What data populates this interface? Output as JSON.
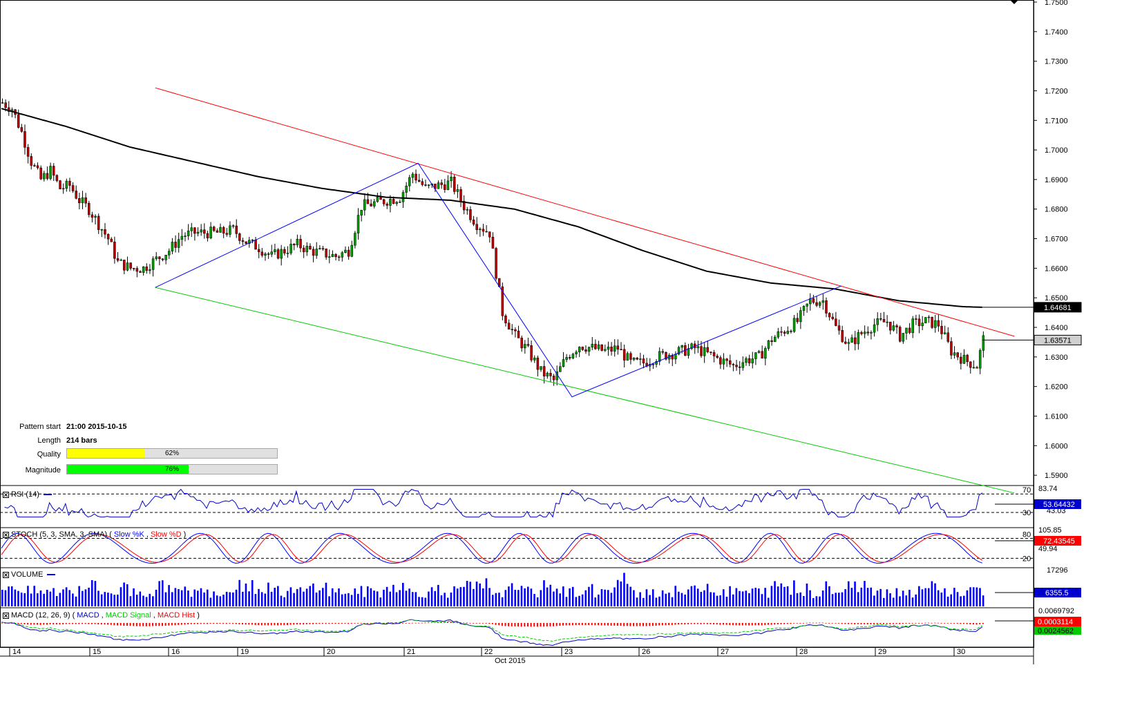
{
  "chart_data": {
    "type": "candlestick",
    "price_axis": {
      "min": 1.585,
      "max": 1.75,
      "ticks": [
        "1.7500",
        "1.7400",
        "1.7300",
        "1.7200",
        "1.7100",
        "1.7000",
        "1.6900",
        "1.6800",
        "1.6700",
        "1.6600",
        "1.6500",
        "1.6400",
        "1.6300",
        "1.6200",
        "1.6100",
        "1.6000",
        "1.5900"
      ],
      "last_price": "1.63571",
      "ma_value": "1.64681"
    },
    "date_axis": {
      "labels": [
        "14",
        "15",
        "16",
        "19",
        "20",
        "21",
        "22",
        "23",
        "26",
        "27",
        "28",
        "29",
        "30"
      ],
      "month_label": "Oct 2015"
    },
    "close_path": [
      [
        0,
        1.716
      ],
      [
        3,
        1.714
      ],
      [
        6,
        1.706
      ],
      [
        9,
        1.696
      ],
      [
        12,
        1.69
      ],
      [
        15,
        1.693
      ],
      [
        18,
        1.687
      ],
      [
        21,
        1.688
      ],
      [
        24,
        1.683
      ],
      [
        27,
        1.68
      ],
      [
        30,
        1.675
      ],
      [
        33,
        1.67
      ],
      [
        36,
        1.662
      ],
      [
        40,
        1.66
      ],
      [
        44,
        1.66
      ],
      [
        48,
        1.663
      ],
      [
        52,
        1.666
      ],
      [
        56,
        1.671
      ],
      [
        60,
        1.672
      ],
      [
        64,
        1.672
      ],
      [
        68,
        1.672
      ],
      [
        72,
        1.673
      ],
      [
        76,
        1.669
      ],
      [
        80,
        1.667
      ],
      [
        84,
        1.664
      ],
      [
        88,
        1.666
      ],
      [
        92,
        1.668
      ],
      [
        96,
        1.666
      ],
      [
        100,
        1.665
      ],
      [
        104,
        1.664
      ],
      [
        108,
        1.666
      ],
      [
        112,
        1.681
      ],
      [
        116,
        1.682
      ],
      [
        120,
        1.683
      ],
      [
        124,
        1.684
      ],
      [
        128,
        1.692
      ],
      [
        132,
        1.687
      ],
      [
        136,
        1.688
      ],
      [
        140,
        1.689
      ],
      [
        144,
        1.681
      ],
      [
        148,
        1.675
      ],
      [
        152,
        1.672
      ],
      [
        156,
        1.645
      ],
      [
        160,
        1.637
      ],
      [
        164,
        1.632
      ],
      [
        168,
        1.625
      ],
      [
        172,
        1.622
      ],
      [
        176,
        1.63
      ],
      [
        180,
        1.634
      ],
      [
        184,
        1.633
      ],
      [
        188,
        1.632
      ],
      [
        192,
        1.633
      ],
      [
        196,
        1.628
      ],
      [
        200,
        1.628
      ],
      [
        204,
        1.63
      ],
      [
        208,
        1.631
      ],
      [
        212,
        1.632
      ],
      [
        216,
        1.633
      ],
      [
        220,
        1.631
      ],
      [
        224,
        1.629
      ],
      [
        228,
        1.627
      ],
      [
        232,
        1.629
      ],
      [
        236,
        1.63
      ],
      [
        240,
        1.636
      ],
      [
        244,
        1.639
      ],
      [
        248,
        1.642
      ],
      [
        252,
        1.649
      ],
      [
        256,
        1.649
      ],
      [
        260,
        1.64
      ],
      [
        264,
        1.634
      ],
      [
        268,
        1.638
      ],
      [
        272,
        1.641
      ],
      [
        276,
        1.642
      ],
      [
        280,
        1.637
      ],
      [
        284,
        1.641
      ],
      [
        288,
        1.642
      ],
      [
        292,
        1.641
      ],
      [
        296,
        1.632
      ],
      [
        300,
        1.629
      ],
      [
        304,
        1.627
      ],
      [
        306,
        1.636
      ]
    ],
    "sma200": [
      [
        0,
        1.714
      ],
      [
        20,
        1.708
      ],
      [
        40,
        1.701
      ],
      [
        60,
        1.696
      ],
      [
        80,
        1.691
      ],
      [
        100,
        1.687
      ],
      [
        120,
        1.684
      ],
      [
        140,
        1.683
      ],
      [
        160,
        1.68
      ],
      [
        180,
        1.674
      ],
      [
        200,
        1.666
      ],
      [
        220,
        1.659
      ],
      [
        240,
        1.655
      ],
      [
        260,
        1.653
      ],
      [
        280,
        1.649
      ],
      [
        300,
        1.647
      ],
      [
        306,
        1.6468
      ]
    ],
    "channel_upper": [
      [
        48,
        1.721
      ],
      [
        316,
        1.637
      ]
    ],
    "channel_lower": [
      [
        48,
        1.6535
      ],
      [
        316,
        1.584
      ]
    ],
    "zigzag": [
      [
        48,
        1.6535
      ],
      [
        130,
        1.6955
      ],
      [
        178,
        1.6165
      ],
      [
        262,
        1.654
      ]
    ],
    "pattern_info": {
      "start_label": "Pattern start",
      "start_value": "21:00 2015-10-15",
      "length_label": "Length",
      "length_value": "214 bars",
      "quality_label": "Quality",
      "quality_value": "62%",
      "quality_pct": 62,
      "magnitude_label": "Magnitude",
      "magnitude_value": "76%",
      "magnitude_pct": 76
    },
    "indicators": {
      "rsi": {
        "title": "RSI (14)",
        "scale_top": "83.74",
        "levels": [
          "70",
          "30"
        ],
        "value": "53.64432",
        "mid_label": "43.03"
      },
      "stoch": {
        "title": "STOCH (5, 3, SMA, 3, SMA)",
        "k_label": "Slow %K",
        "d_label": "Slow %D",
        "scale_top": "105.85",
        "scale_mid": "49.94",
        "levels": [
          "80",
          "20"
        ],
        "value": "72.43545"
      },
      "volume": {
        "title": "VOLUME",
        "scale_top": "17296",
        "value": "6355.5"
      },
      "macd": {
        "title": "MACD (12, 26, 9)",
        "macd_label": "MACD",
        "signal_label": "MACD Signal",
        "hist_label": "MACD Hist",
        "scale_top": "0.0069792",
        "value": "0.0003114",
        "value2": "0.0024562"
      }
    },
    "colors": {
      "up": "#00a000",
      "down": "#c00000",
      "ma": "#000000",
      "upper": "#ff0000",
      "lower": "#00cc00",
      "zigzag": "#0000ff",
      "quality": "#ffff00",
      "magnitude": "#00ff00",
      "rsi": "#0000cc",
      "stoch_k": "#0000ff",
      "stoch_d": "#ff0000",
      "volume": "#0000ff",
      "macd_sig": "#00cc00",
      "macd_hist": "#ff0000"
    }
  }
}
